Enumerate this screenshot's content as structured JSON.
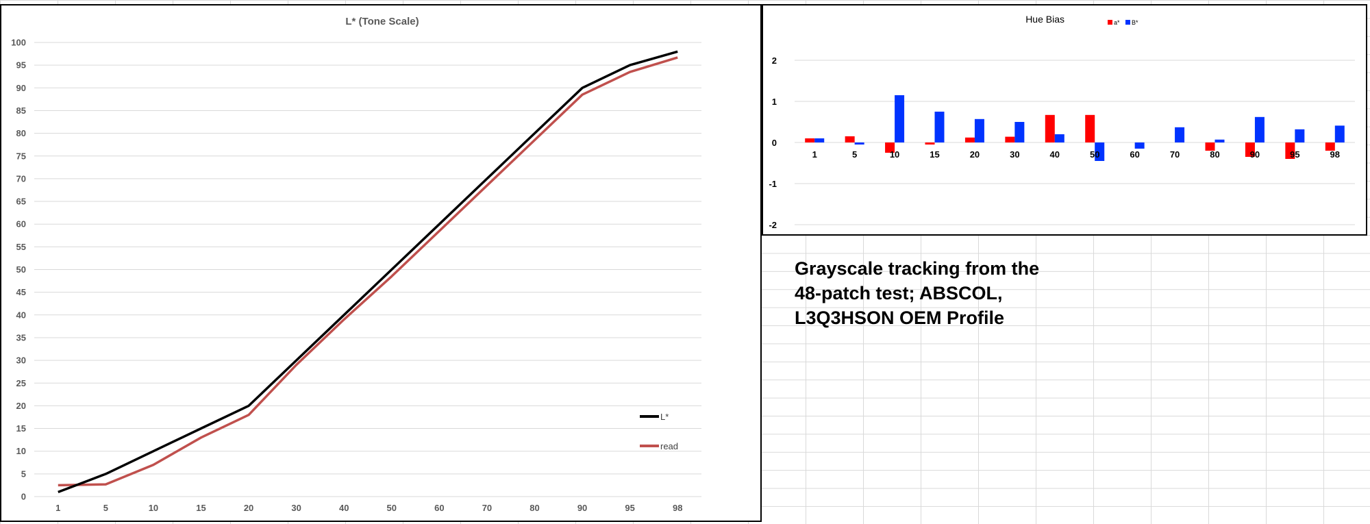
{
  "caption": {
    "line1": "Grayscale tracking from the",
    "line2": "48-patch test; ABSCOL,",
    "line3": "L3Q3HSON OEM Profile"
  },
  "colors": {
    "l_star": "#000000",
    "read": "#c0504d",
    "a_star": "#ff0000",
    "b_star": "#0033ff",
    "gridline": "#d9d9d9",
    "axis_text": "#595959"
  },
  "chart_data": [
    {
      "type": "line",
      "title": "L* (Tone Scale)",
      "xlabel": "",
      "ylabel": "",
      "categories": [
        "1",
        "5",
        "10",
        "15",
        "20",
        "30",
        "40",
        "50",
        "60",
        "70",
        "80",
        "90",
        "95",
        "98"
      ],
      "series": [
        {
          "name": "L*",
          "color": "#000000",
          "values": [
            1,
            5,
            10,
            15,
            20,
            30,
            40,
            50,
            60,
            70,
            80,
            90,
            95,
            98
          ]
        },
        {
          "name": "read",
          "color": "#c0504d",
          "values": [
            2.5,
            2.7,
            7,
            13,
            18,
            29,
            39,
            48.5,
            58.5,
            68.5,
            78.5,
            88.5,
            93.5,
            96.7
          ]
        }
      ],
      "ylim": [
        0,
        100
      ],
      "yticks": [
        0,
        5,
        10,
        15,
        20,
        25,
        30,
        35,
        40,
        45,
        50,
        55,
        60,
        65,
        70,
        75,
        80,
        85,
        90,
        95,
        100
      ],
      "grid": true,
      "legend_position": "bottom-right"
    },
    {
      "type": "bar",
      "title": "Hue Bias",
      "xlabel": "",
      "ylabel": "",
      "categories": [
        "1",
        "5",
        "10",
        "15",
        "20",
        "30",
        "40",
        "50",
        "60",
        "70",
        "80",
        "90",
        "95",
        "98"
      ],
      "series": [
        {
          "name": "a*",
          "color": "#ff0000",
          "values": [
            0.1,
            0.15,
            -0.25,
            -0.05,
            0.12,
            0.14,
            0.67,
            0.67,
            0,
            0,
            -0.2,
            -0.35,
            -0.4,
            -0.2
          ]
        },
        {
          "name": "B*",
          "color": "#0033ff",
          "values": [
            0.1,
            -0.05,
            1.15,
            0.75,
            0.57,
            0.5,
            0.2,
            -0.45,
            -0.15,
            0.37,
            0.07,
            0.62,
            0.32,
            0.41
          ]
        }
      ],
      "ylim": [
        -2,
        2
      ],
      "yticks": [
        -2,
        -1,
        0,
        1,
        2
      ],
      "grid": true,
      "legend_position": "top"
    }
  ]
}
